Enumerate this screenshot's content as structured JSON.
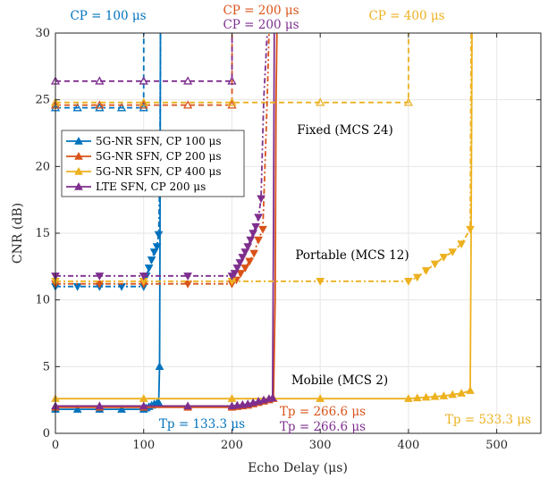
{
  "chart_data": {
    "type": "line",
    "title": "",
    "xlabel": "Echo Delay (μs)",
    "ylabel": "CNR (dB)",
    "xlim": [
      0,
      550
    ],
    "ylim": [
      0,
      30
    ],
    "xticks": [
      0,
      100,
      200,
      300,
      400,
      500
    ],
    "yticks": [
      0,
      5,
      10,
      15,
      20,
      25,
      30
    ],
    "grid": true,
    "legend_position": "left-middle",
    "series": [
      {
        "name": "5G-NR SFN, CP 100 μs",
        "color": "#0072BD",
        "marker": "triangle-up",
        "x": [
          0,
          25,
          50,
          75,
          100,
          103,
          106,
          109,
          112,
          115,
          117,
          118,
          118.5,
          118.8,
          119
        ],
        "y": [
          1.8,
          1.8,
          1.8,
          1.8,
          1.8,
          1.9,
          2.0,
          2.1,
          2.2,
          2.25,
          2.3,
          5,
          15,
          25,
          30
        ]
      },
      {
        "name": "5G-NR SFN, CP 200 μs",
        "color": "#D95319",
        "marker": "triangle-up",
        "x": [
          0,
          50,
          100,
          150,
          200,
          206,
          212,
          218,
          224,
          230,
          236,
          242,
          247,
          249,
          250,
          251
        ],
        "y": [
          1.95,
          1.95,
          1.95,
          1.95,
          1.95,
          2.0,
          2.05,
          2.1,
          2.2,
          2.3,
          2.4,
          2.5,
          2.6,
          10,
          25,
          30
        ]
      },
      {
        "name": "5G-NR SFN, CP 400 μs",
        "color": "#EDB120",
        "marker": "triangle-up",
        "x": [
          0,
          100,
          200,
          300,
          400,
          410,
          420,
          430,
          440,
          450,
          460,
          470,
          471,
          472
        ],
        "y": [
          2.6,
          2.6,
          2.6,
          2.6,
          2.6,
          2.65,
          2.7,
          2.75,
          2.8,
          2.9,
          3.0,
          3.2,
          15,
          30
        ]
      },
      {
        "name": "LTE SFN, CP 200 μs",
        "color": "#7E2F8E",
        "marker": "triangle-up",
        "x": [
          0,
          50,
          100,
          150,
          200,
          206,
          212,
          218,
          224,
          230,
          236,
          242,
          246,
          247,
          248
        ],
        "y": [
          2.05,
          2.05,
          2.05,
          2.05,
          2.05,
          2.1,
          2.15,
          2.2,
          2.3,
          2.4,
          2.5,
          2.6,
          2.65,
          15,
          30
        ]
      }
    ],
    "extra_series": [
      {
        "group": "portable",
        "color": "#0072BD",
        "marker": "triangle-down",
        "x": [
          0,
          25,
          50,
          75,
          100,
          103,
          106,
          109,
          112,
          115,
          117,
          118.5,
          119
        ],
        "y": [
          11.0,
          11.0,
          11.0,
          11.0,
          11.0,
          11.8,
          12.4,
          13.0,
          13.6,
          14.0,
          14.9,
          20,
          30
        ]
      },
      {
        "group": "portable",
        "color": "#D95319",
        "marker": "triangle-down",
        "x": [
          0,
          50,
          100,
          150,
          200,
          205,
          210,
          215,
          220,
          225,
          230,
          235,
          240,
          242
        ],
        "y": [
          11.2,
          11.2,
          11.2,
          11.2,
          11.2,
          11.5,
          12.0,
          12.4,
          12.9,
          13.5,
          14.5,
          15.3,
          25,
          30
        ]
      },
      {
        "group": "portable",
        "color": "#EDB120",
        "marker": "triangle-down",
        "x": [
          0,
          100,
          200,
          300,
          400,
          410,
          420,
          430,
          440,
          450,
          460,
          470,
          471
        ],
        "y": [
          11.4,
          11.4,
          11.4,
          11.4,
          11.4,
          11.7,
          12.2,
          12.7,
          13.2,
          13.6,
          14.2,
          15.3,
          30
        ]
      },
      {
        "group": "portable",
        "color": "#7E2F8E",
        "marker": "triangle-down",
        "x": [
          0,
          50,
          100,
          150,
          200,
          203,
          206,
          209,
          212,
          215,
          218,
          221,
          224,
          227,
          230,
          233,
          236,
          240
        ],
        "y": [
          11.8,
          11.8,
          11.8,
          11.8,
          11.8,
          12.0,
          12.4,
          12.8,
          13.2,
          13.6,
          14.0,
          14.5,
          15.0,
          15.5,
          16.2,
          17.6,
          25,
          30
        ]
      },
      {
        "group": "fixed",
        "color": "#0072BD",
        "marker": "triangle-up-open",
        "x": [
          0,
          25,
          50,
          75,
          100,
          100.1
        ],
        "y": [
          24.4,
          24.4,
          24.4,
          24.4,
          24.4,
          30
        ]
      },
      {
        "group": "fixed",
        "color": "#D95319",
        "marker": "triangle-up-open",
        "x": [
          0,
          50,
          100,
          150,
          200,
          200.1
        ],
        "y": [
          24.6,
          24.6,
          24.6,
          24.6,
          24.6,
          30
        ]
      },
      {
        "group": "fixed",
        "color": "#EDB120",
        "marker": "triangle-up-open",
        "x": [
          0,
          100,
          200,
          300,
          400,
          400.1
        ],
        "y": [
          24.8,
          24.8,
          24.8,
          24.8,
          24.8,
          30
        ]
      },
      {
        "group": "fixed",
        "color": "#7E2F8E",
        "marker": "triangle-up-open",
        "x": [
          0,
          50,
          100,
          150,
          200,
          200.1
        ],
        "y": [
          26.4,
          26.4,
          26.4,
          26.4,
          26.4,
          30
        ]
      }
    ],
    "annotations": [
      {
        "text": "CP = 100 μs",
        "color": "#0072BD"
      },
      {
        "text": "CP = 200 μs",
        "color": "#D95319"
      },
      {
        "text": "CP = 200 μs",
        "color": "#7E2F8E"
      },
      {
        "text": "CP = 400 μs",
        "color": "#EDB120"
      },
      {
        "text": "Fixed (MCS 24)",
        "color": "#000000"
      },
      {
        "text": "Portable (MCS 12)",
        "color": "#000000"
      },
      {
        "text": "Mobile (MCS 2)",
        "color": "#000000"
      },
      {
        "text": "Tp = 133.3 μs",
        "color": "#0072BD"
      },
      {
        "text": "Tp = 266.6 μs",
        "color": "#D95319"
      },
      {
        "text": "Tp = 266.6 μs",
        "color": "#7E2F8E"
      },
      {
        "text": "Tp = 533.3 μs",
        "color": "#EDB120"
      }
    ]
  }
}
